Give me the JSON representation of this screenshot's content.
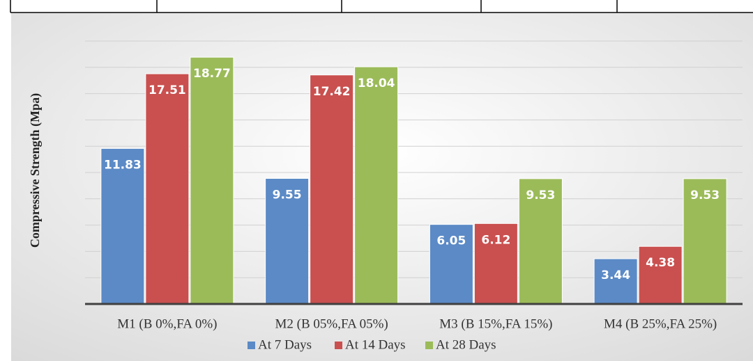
{
  "chart_data": {
    "type": "bar",
    "y_label": "Compressive Strength  (Mpa)",
    "categories": [
      "M1 (B 0%,FA 0%)",
      "M2 (B 05%,FA 05%)",
      "M3 (B 15%,FA 15%)",
      "M4 (B 25%,FA 25%)"
    ],
    "series": [
      {
        "name": "At 7 Days",
        "color": "#5b8ac6",
        "values": [
          11.83,
          9.55,
          6.05,
          3.44
        ]
      },
      {
        "name": "At 14 Days",
        "color": "#c9504f",
        "values": [
          17.51,
          17.42,
          6.12,
          4.38
        ]
      },
      {
        "name": "At 28 Days",
        "color": "#9bbb59",
        "values": [
          18.77,
          18.04,
          9.53,
          9.53
        ]
      }
    ],
    "ylim": [
      0,
      20
    ],
    "yticks": [
      0,
      2,
      4,
      6,
      8,
      10,
      12,
      14,
      16,
      18,
      20
    ],
    "grid": true,
    "legend": "bottom"
  }
}
